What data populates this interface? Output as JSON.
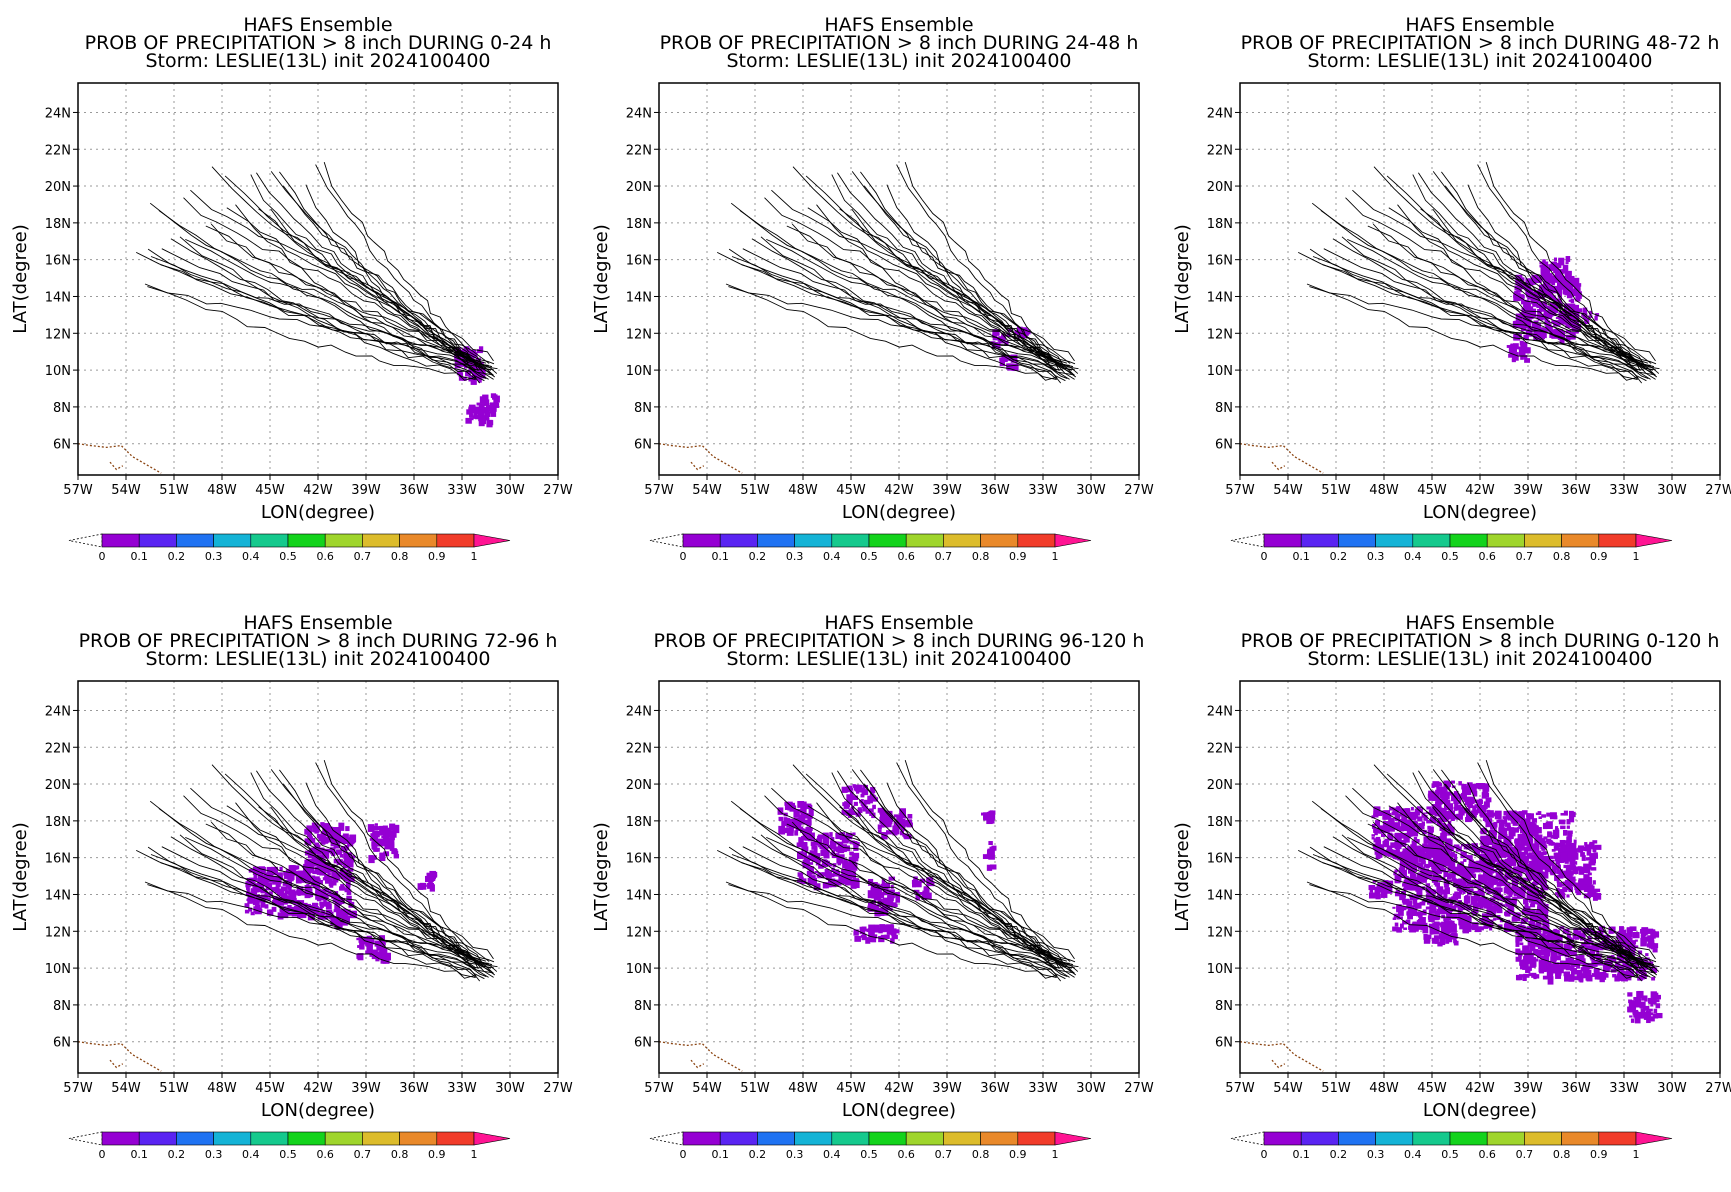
{
  "figure": {
    "colorbar": {
      "colors": [
        "#9500d3",
        "#5a24f2",
        "#1f72f2",
        "#14b3d6",
        "#15c98d",
        "#13d31c",
        "#9fd52c",
        "#dcbc2b",
        "#e9892a",
        "#f13c2a"
      ],
      "over_color": "#ff1493",
      "labels": [
        "0",
        "0.1",
        "0.2",
        "0.3",
        "0.4",
        "0.5",
        "0.6",
        "0.7",
        "0.8",
        "0.9",
        "1"
      ]
    },
    "track_color": "#000000",
    "coast_color": "#8b4513"
  },
  "chart_data": [
    {
      "type": "map",
      "title_line1": "HAFS Ensemble",
      "title_line2": "PROB OF PRECIPITATION > 8 inch DURING  0-24 h",
      "title_line3": "Storm: LESLIE(13L) init 2024100400",
      "xlabel": "LON(degree)",
      "ylabel": "LAT(degree)",
      "x_ticks": [
        "57W",
        "54W",
        "51W",
        "48W",
        "45W",
        "42W",
        "39W",
        "36W",
        "33W",
        "30W",
        "27W"
      ],
      "y_ticks": [
        "6N",
        "8N",
        "10N",
        "12N",
        "14N",
        "16N",
        "18N",
        "20N",
        "22N",
        "24N"
      ],
      "xlim": [
        -57,
        -27
      ],
      "ylim": [
        4.3,
        25.6
      ],
      "grid": true,
      "prob_regions": [
        {
          "lon": [
            -33.5,
            -31.8
          ],
          "lat": [
            9.5,
            11.3
          ],
          "prob": 0.05
        },
        {
          "lon": [
            -32.2,
            -30.9
          ],
          "lat": [
            8.2,
            8.8
          ],
          "prob": 0.05
        },
        {
          "lon": [
            -32.8,
            -31.2
          ],
          "lat": [
            7.2,
            8.2
          ],
          "prob": 0.05
        }
      ]
    },
    {
      "type": "map",
      "title_line1": "HAFS Ensemble",
      "title_line2": "PROB OF PRECIPITATION > 8 inch DURING 24-48 h",
      "title_line3": "Storm: LESLIE(13L) init 2024100400",
      "xlabel": "LON(degree)",
      "ylabel": "LAT(degree)",
      "x_ticks": [
        "57W",
        "54W",
        "51W",
        "48W",
        "45W",
        "42W",
        "39W",
        "36W",
        "33W",
        "30W",
        "27W"
      ],
      "y_ticks": [
        "6N",
        "8N",
        "10N",
        "12N",
        "14N",
        "16N",
        "18N",
        "20N",
        "22N",
        "24N"
      ],
      "xlim": [
        -57,
        -27
      ],
      "ylim": [
        4.3,
        25.6
      ],
      "grid": true,
      "prob_regions": [
        {
          "lon": [
            -36.3,
            -35.2
          ],
          "lat": [
            11.5,
            12.3
          ],
          "prob": 0.05
        },
        {
          "lon": [
            -34.8,
            -34.1
          ],
          "lat": [
            11.9,
            12.4
          ],
          "prob": 0.05
        },
        {
          "lon": [
            -35.8,
            -34.9
          ],
          "lat": [
            10.3,
            10.9
          ],
          "prob": 0.05
        }
      ]
    },
    {
      "type": "map",
      "title_line1": "HAFS Ensemble",
      "title_line2": "PROB OF PRECIPITATION > 8 inch DURING 48-72 h",
      "title_line3": "Storm: LESLIE(13L) init 2024100400",
      "xlabel": "LON(degree)",
      "ylabel": "LAT(degree)",
      "x_ticks": [
        "57W",
        "54W",
        "51W",
        "48W",
        "45W",
        "42W",
        "39W",
        "36W",
        "33W",
        "30W",
        "27W"
      ],
      "y_ticks": [
        "6N",
        "8N",
        "10N",
        "12N",
        "14N",
        "16N",
        "18N",
        "20N",
        "22N",
        "24N"
      ],
      "xlim": [
        -57,
        -27
      ],
      "ylim": [
        4.3,
        25.6
      ],
      "grid": true,
      "prob_regions": [
        {
          "lon": [
            -40.0,
            -36.0
          ],
          "lat": [
            11.8,
            15.2
          ],
          "prob": 0.05
        },
        {
          "lon": [
            -38.4,
            -36.6
          ],
          "lat": [
            14.8,
            16.2
          ],
          "prob": 0.05
        },
        {
          "lon": [
            -36.6,
            -34.8
          ],
          "lat": [
            12.7,
            13.4
          ],
          "prob": 0.05
        },
        {
          "lon": [
            -40.4,
            -39.2
          ],
          "lat": [
            10.6,
            11.6
          ],
          "prob": 0.05
        }
      ]
    },
    {
      "type": "map",
      "title_line1": "HAFS Ensemble",
      "title_line2": "PROB OF PRECIPITATION > 8 inch DURING 72-96 h",
      "title_line3": "Storm: LESLIE(13L) init 2024100400",
      "xlabel": "LON(degree)",
      "ylabel": "LAT(degree)",
      "x_ticks": [
        "57W",
        "54W",
        "51W",
        "48W",
        "45W",
        "42W",
        "39W",
        "36W",
        "33W",
        "30W",
        "27W"
      ],
      "y_ticks": [
        "6N",
        "8N",
        "10N",
        "12N",
        "14N",
        "16N",
        "18N",
        "20N",
        "22N",
        "24N"
      ],
      "xlim": [
        -57,
        -27
      ],
      "ylim": [
        4.3,
        25.6
      ],
      "grid": true,
      "prob_regions": [
        {
          "lon": [
            -46.6,
            -40.0
          ],
          "lat": [
            13.0,
            15.6
          ],
          "prob": 0.05
        },
        {
          "lon": [
            -43.0,
            -40.0
          ],
          "lat": [
            15.5,
            18.0
          ],
          "prob": 0.05
        },
        {
          "lon": [
            -38.9,
            -37.2
          ],
          "lat": [
            16.0,
            17.9
          ],
          "prob": 0.05
        },
        {
          "lon": [
            -39.7,
            -37.8
          ],
          "lat": [
            10.6,
            11.8
          ],
          "prob": 0.05
        },
        {
          "lon": [
            -35.8,
            -34.7
          ],
          "lat": [
            14.5,
            15.3
          ],
          "prob": 0.05
        },
        {
          "lon": [
            -41.8,
            -40.4
          ],
          "lat": [
            12.5,
            13.2
          ],
          "prob": 0.05
        }
      ]
    },
    {
      "type": "map",
      "title_line1": "HAFS Ensemble",
      "title_line2": "PROB OF PRECIPITATION > 8 inch DURING 96-120 h",
      "title_line3": "Storm: LESLIE(13L) init 2024100400",
      "xlabel": "LON(degree)",
      "ylabel": "LAT(degree)",
      "x_ticks": [
        "57W",
        "54W",
        "51W",
        "48W",
        "45W",
        "42W",
        "39W",
        "36W",
        "33W",
        "30W",
        "27W"
      ],
      "y_ticks": [
        "6N",
        "8N",
        "10N",
        "12N",
        "14N",
        "16N",
        "18N",
        "20N",
        "22N",
        "24N"
      ],
      "xlim": [
        -57,
        -27
      ],
      "ylim": [
        4.3,
        25.6
      ],
      "grid": true,
      "prob_regions": [
        {
          "lon": [
            -48.4,
            -44.8
          ],
          "lat": [
            14.6,
            17.4
          ],
          "prob": 0.05
        },
        {
          "lon": [
            -49.6,
            -47.6
          ],
          "lat": [
            17.4,
            19.1
          ],
          "prob": 0.05
        },
        {
          "lon": [
            -45.6,
            -43.6
          ],
          "lat": [
            18.4,
            20.0
          ],
          "prob": 0.05
        },
        {
          "lon": [
            -43.4,
            -41.4
          ],
          "lat": [
            17.2,
            18.8
          ],
          "prob": 0.05
        },
        {
          "lon": [
            -44.0,
            -42.2
          ],
          "lat": [
            13.2,
            15.0
          ],
          "prob": 0.05
        },
        {
          "lon": [
            -45.0,
            -42.2
          ],
          "lat": [
            11.6,
            12.4
          ],
          "prob": 0.05
        },
        {
          "lon": [
            -41.2,
            -40.2
          ],
          "lat": [
            14.0,
            15.0
          ],
          "prob": 0.05
        },
        {
          "lon": [
            -36.8,
            -36.2
          ],
          "lat": [
            15.6,
            17.0
          ],
          "prob": 0.05
        },
        {
          "lon": [
            -36.9,
            -36.3
          ],
          "lat": [
            18.2,
            18.6
          ],
          "prob": 0.05
        }
      ]
    },
    {
      "type": "map",
      "title_line1": "HAFS Ensemble",
      "title_line2": "PROB OF PRECIPITATION > 8 inch DURING 0-120 h",
      "title_line3": "Storm: LESLIE(13L) init 2024100400",
      "xlabel": "LON(degree)",
      "ylabel": "LAT(degree)",
      "x_ticks": [
        "57W",
        "54W",
        "51W",
        "48W",
        "45W",
        "42W",
        "39W",
        "36W",
        "33W",
        "30W",
        "27W"
      ],
      "y_ticks": [
        "6N",
        "8N",
        "10N",
        "12N",
        "14N",
        "16N",
        "18N",
        "20N",
        "22N",
        "24N"
      ],
      "xlim": [
        -57,
        -27
      ],
      "ylim": [
        4.3,
        25.6
      ],
      "grid": true,
      "prob_regions": [
        {
          "lon": [
            -47.5,
            -38.0
          ],
          "lat": [
            12.2,
            16.8
          ],
          "prob": 0.05
        },
        {
          "lon": [
            -48.8,
            -44.0
          ],
          "lat": [
            16.0,
            18.8
          ],
          "prob": 0.05
        },
        {
          "lon": [
            -45.4,
            -41.6
          ],
          "lat": [
            18.2,
            20.2
          ],
          "prob": 0.05
        },
        {
          "lon": [
            -42.0,
            -36.4
          ],
          "lat": [
            15.2,
            18.6
          ],
          "prob": 0.05
        },
        {
          "lon": [
            -37.4,
            -34.8
          ],
          "lat": [
            14.0,
            17.0
          ],
          "prob": 0.05
        },
        {
          "lon": [
            -39.8,
            -31.2
          ],
          "lat": [
            9.5,
            12.3
          ],
          "prob": 0.05
        },
        {
          "lon": [
            -32.8,
            -30.9
          ],
          "lat": [
            7.2,
            8.8
          ],
          "prob": 0.05
        },
        {
          "lon": [
            -49.0,
            -47.8
          ],
          "lat": [
            14.0,
            14.8
          ],
          "prob": 0.05
        },
        {
          "lon": [
            -45.6,
            -43.6
          ],
          "lat": [
            11.4,
            12.4
          ],
          "prob": 0.05
        }
      ]
    }
  ]
}
